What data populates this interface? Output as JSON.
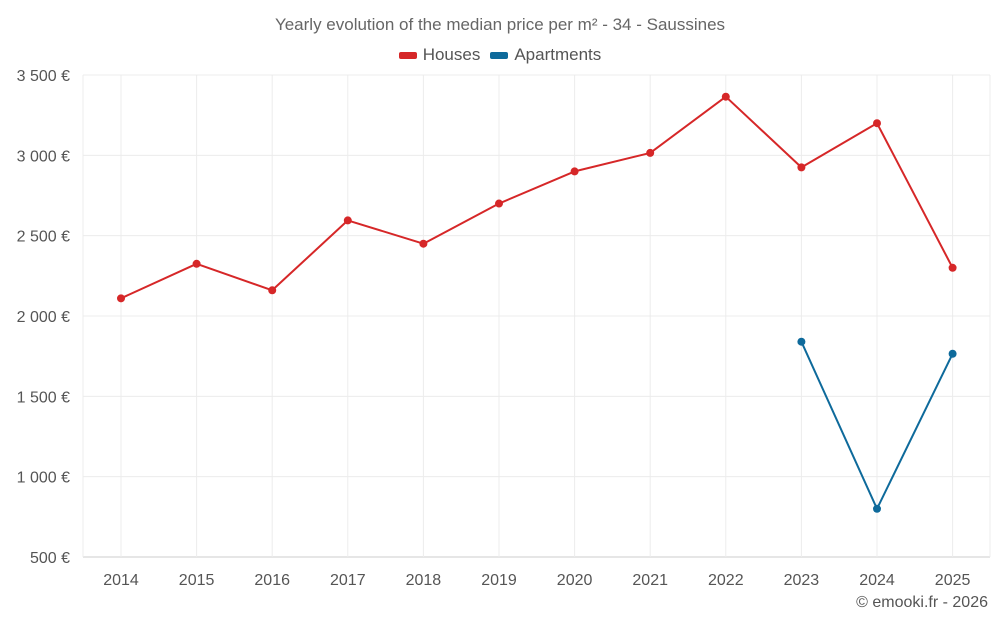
{
  "chart_data": {
    "type": "line",
    "title": "Yearly evolution of the median price per m² - 34 - Saussines",
    "xlabel": "",
    "ylabel": "",
    "categories": [
      "2014",
      "2015",
      "2016",
      "2017",
      "2018",
      "2019",
      "2020",
      "2021",
      "2022",
      "2023",
      "2024",
      "2025"
    ],
    "ylim": [
      500,
      3500
    ],
    "yticks": [
      500,
      1000,
      1500,
      2000,
      2500,
      3000,
      3500
    ],
    "ytick_labels": [
      "500 €",
      "1 000 €",
      "1 500 €",
      "2 000 €",
      "2 500 €",
      "3 000 €",
      "3 500 €"
    ],
    "grid": true,
    "legend_position": "top-center",
    "series": [
      {
        "name": "Houses",
        "color": "#d62728",
        "values": [
          2110,
          2325,
          2160,
          2595,
          2450,
          2700,
          2900,
          3015,
          3365,
          2925,
          3200,
          2300
        ]
      },
      {
        "name": "Apartments",
        "color": "#0e6a9b",
        "values": [
          null,
          null,
          null,
          null,
          null,
          null,
          null,
          null,
          null,
          1840,
          800,
          1765
        ]
      }
    ]
  },
  "credit": "© emooki.fr - 2026"
}
